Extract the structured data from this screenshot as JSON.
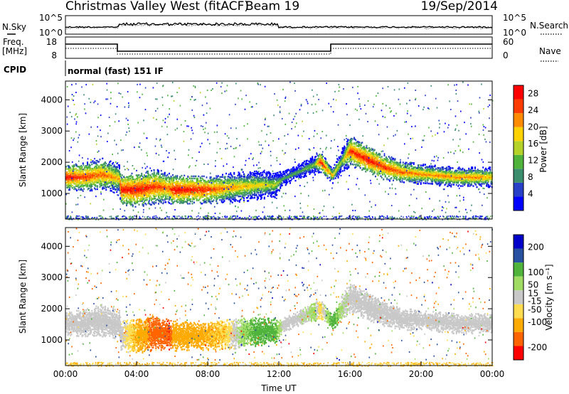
{
  "header": {
    "station": "Christmas Valley West (fitACF)",
    "beam": "Beam 19",
    "date": "19/Sep/2014"
  },
  "status_panel": {
    "nsky_label": "N.Sky",
    "nsky_ticks": [
      "10^5",
      "10^0"
    ],
    "nsearch_label": "N.Search",
    "nsearch_ticks": [
      "10^5",
      "10^0"
    ],
    "freq_label": "Freq.",
    "freq_unit": "[MHz]",
    "freq_ticks": [
      "18",
      "8"
    ],
    "nave_label": "Nave",
    "nave_ticks": [
      "60",
      "0"
    ],
    "cpid_label": "CPID",
    "cpid_value": "normal (fast) 151 IF"
  },
  "colors": {
    "power_scale": [
      "#0000ff",
      "#2840c8",
      "#3c8c6e",
      "#50b43c",
      "#b4d228",
      "#ffd200",
      "#ff8c00",
      "#ff3c00",
      "#ff0000"
    ],
    "velocity_scale": [
      "#ff0000",
      "#ff6400",
      "#ffaa00",
      "#ffdc50",
      "#c8c8c8",
      "#a0dc64",
      "#50b43c",
      "#2850a0",
      "#0000c8"
    ]
  },
  "chart_data": [
    {
      "type": "heatmap",
      "panel": "power",
      "xlabel": "Time UT",
      "ylabel": "Slant Range [km]",
      "x_ticks": [
        "00:00",
        "04:00",
        "08:00",
        "12:00",
        "16:00",
        "20:00",
        "00:00"
      ],
      "x_range_hours": [
        0,
        24
      ],
      "y_ticks": [
        1000,
        2000,
        3000,
        4000
      ],
      "y_range_km": [
        180,
        4600
      ],
      "colorbar_label": "Power [dB]",
      "colorbar_ticks": [
        4,
        8,
        12,
        16,
        20,
        24,
        28
      ],
      "colorbar_range": [
        0,
        30
      ],
      "main_band": {
        "hours": [
          0,
          1,
          2,
          3,
          3.1,
          4,
          5,
          5.8,
          6,
          7,
          8,
          9,
          10,
          11,
          11.8,
          12.2,
          13,
          14,
          14.3,
          15,
          15.5,
          16,
          17,
          18,
          19,
          20,
          21,
          22,
          23,
          24
        ],
        "center_km": [
          1550,
          1550,
          1650,
          1500,
          1150,
          1150,
          1250,
          1200,
          1150,
          1150,
          1150,
          1200,
          1250,
          1300,
          1300,
          1500,
          1700,
          1950,
          2050,
          1600,
          2050,
          2400,
          2100,
          1850,
          1700,
          1650,
          1600,
          1550,
          1550,
          1550
        ],
        "width_km": [
          250,
          280,
          320,
          300,
          300,
          350,
          350,
          300,
          300,
          280,
          280,
          300,
          300,
          280,
          250,
          150,
          150,
          200,
          200,
          150,
          250,
          300,
          280,
          250,
          220,
          200,
          200,
          200,
          200,
          200
        ],
        "peak_db": [
          28,
          26,
          24,
          20,
          28,
          28,
          26,
          24,
          28,
          28,
          26,
          22,
          20,
          18,
          16,
          12,
          12,
          14,
          28,
          20,
          14,
          26,
          28,
          26,
          24,
          22,
          22,
          22,
          22,
          20
        ]
      }
    },
    {
      "type": "heatmap",
      "panel": "velocity",
      "xlabel": "Time UT",
      "ylabel": "Slant Range [km]",
      "x_ticks": [
        "00:00",
        "04:00",
        "08:00",
        "12:00",
        "16:00",
        "20:00",
        "00:00"
      ],
      "x_range_hours": [
        0,
        24
      ],
      "y_ticks": [
        1000,
        2000,
        3000,
        4000
      ],
      "y_range_km": [
        180,
        4600
      ],
      "colorbar_label": "Velocity [m s⁻¹]",
      "colorbar_ticks": [
        -200,
        -100,
        -50,
        -15,
        15,
        50,
        100,
        200
      ],
      "colorbar_range": [
        -250,
        250
      ],
      "main_band": {
        "hours": [
          0,
          1,
          2,
          3,
          3.1,
          4,
          5,
          5.8,
          6,
          7,
          8,
          9,
          10,
          11,
          11.8,
          12.2,
          13,
          14,
          14.3,
          15,
          15.5,
          16,
          17,
          18,
          19,
          20,
          21,
          22,
          23,
          24
        ],
        "center_km": [
          1550,
          1550,
          1650,
          1500,
          1150,
          1150,
          1250,
          1200,
          1150,
          1150,
          1150,
          1200,
          1250,
          1300,
          1300,
          1500,
          1700,
          1950,
          2050,
          1600,
          2050,
          2400,
          2100,
          1850,
          1700,
          1650,
          1600,
          1550,
          1550,
          1550
        ],
        "width_km": [
          250,
          280,
          320,
          300,
          300,
          350,
          350,
          300,
          300,
          280,
          280,
          300,
          300,
          280,
          250,
          150,
          150,
          200,
          200,
          150,
          250,
          300,
          280,
          250,
          220,
          200,
          200,
          200,
          200,
          200
        ],
        "velocity_ms": [
          0,
          0,
          0,
          0,
          0,
          -60,
          -120,
          -200,
          -80,
          -70,
          -60,
          -40,
          40,
          80,
          60,
          0,
          0,
          30,
          -40,
          80,
          20,
          0,
          0,
          0,
          0,
          0,
          0,
          0,
          0,
          0
        ]
      }
    }
  ]
}
